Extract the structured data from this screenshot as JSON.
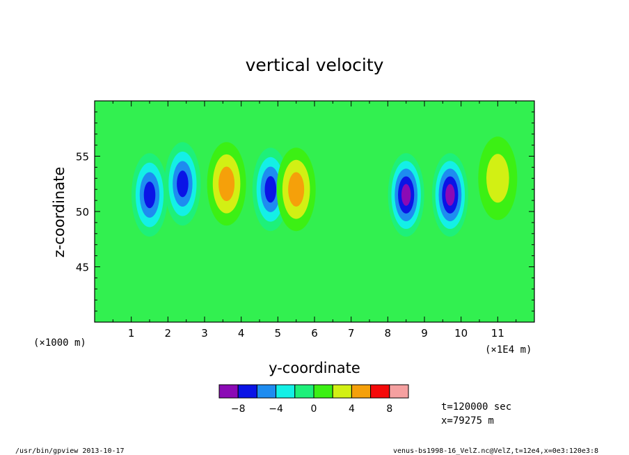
{
  "chart_data": {
    "type": "heatmap",
    "title": "vertical velocity",
    "xlabel": "y-coordinate",
    "ylabel": "z-coordinate",
    "x_unit_left": "(×1000 m)",
    "x_unit_right": "(×1E4 m)",
    "xlim": [
      0,
      12
    ],
    "ylim": [
      40,
      60
    ],
    "xticks": [
      "1",
      "2",
      "3",
      "4",
      "5",
      "6",
      "7",
      "8",
      "9",
      "10",
      "11"
    ],
    "yticks": [
      "45",
      "50",
      "55"
    ],
    "colorbar": {
      "levels": [
        -10,
        -8,
        -6,
        -4,
        -2,
        0,
        2,
        4,
        6,
        8,
        10
      ],
      "tick_labels": [
        "−8",
        "−4",
        "0",
        "4",
        "8"
      ],
      "tick_values": [
        -8,
        -4,
        0,
        4,
        8
      ],
      "colors": [
        "#8b0ab5",
        "#0a14e6",
        "#1e8cf0",
        "#14f0e6",
        "#1ef07a",
        "#3cf014",
        "#d2f014",
        "#f5a00a",
        "#f50a0a",
        "#f5a0a0"
      ]
    },
    "background_color": "#32f050",
    "features": [
      {
        "y": 1.5,
        "z": 51.5,
        "peak": -8,
        "kind": "downdraft"
      },
      {
        "y": 2.4,
        "z": 52.5,
        "peak": -7,
        "kind": "downdraft"
      },
      {
        "y": 4.8,
        "z": 52.0,
        "peak": -8,
        "kind": "downdraft"
      },
      {
        "y": 8.5,
        "z": 51.5,
        "peak": -9,
        "kind": "downdraft"
      },
      {
        "y": 9.7,
        "z": 51.5,
        "peak": -9,
        "kind": "downdraft"
      },
      {
        "y": 3.6,
        "z": 52.5,
        "peak": 5,
        "kind": "updraft"
      },
      {
        "y": 5.5,
        "z": 52.0,
        "peak": 6,
        "kind": "updraft"
      },
      {
        "y": 11.0,
        "z": 53.0,
        "peak": 4,
        "kind": "updraft"
      }
    ],
    "info_time": "t=120000 sec",
    "info_x": "x=79275 m"
  },
  "footer": {
    "left": "/usr/bin/gpview  2013-10-17",
    "right": "venus-bs1998-16_VelZ.nc@VelZ,t=12e4,x=0e3:120e3:8"
  }
}
